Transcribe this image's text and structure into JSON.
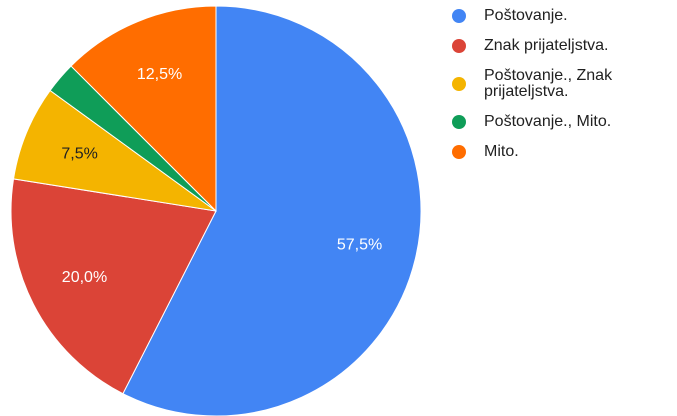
{
  "chart_data": {
    "type": "pie",
    "categories": [
      "Poštovanje.",
      "Znak prijateljstva.",
      "Poštovanje., Znak prijateljstva.",
      "Poštovanje., Mito.",
      "Mito."
    ],
    "values": [
      57.5,
      20.0,
      7.5,
      2.5,
      12.5
    ],
    "value_labels": [
      "57,5%",
      "20,0%",
      "7,5%",
      null,
      "12,5%"
    ],
    "colors": [
      "#4285f4",
      "#db4437",
      "#f4b400",
      "#0f9d58",
      "#ff6d00"
    ],
    "legend": "right"
  }
}
